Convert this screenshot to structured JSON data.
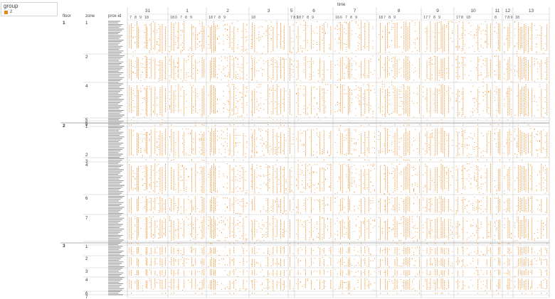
{
  "legend": {
    "title": "group",
    "items": [
      {
        "label": "2",
        "color": "#e8841a"
      }
    ]
  },
  "headers": {
    "floor": "floor",
    "zone": "zone",
    "prox_id": "prox-id",
    "time": "time"
  },
  "chart_data": {
    "type": "scatter",
    "mark_color": "#e8841a",
    "x_axis": {
      "label": "time",
      "days": [
        "31",
        "1",
        "2",
        "3",
        "5",
        "6",
        "7",
        "8",
        "9",
        "10",
        "11",
        "12",
        "13"
      ],
      "hour_ticks": [
        [
          "7",
          "8",
          "9",
          "18"
        ],
        [
          "18",
          "0",
          "7",
          "8",
          "9"
        ],
        [
          "18",
          "7",
          "8",
          "9"
        ],
        [
          "18"
        ],
        [
          "7",
          "8",
          "9"
        ],
        [
          "18",
          "7",
          "8",
          "9"
        ],
        [
          "16",
          "6",
          "7",
          "8",
          "9"
        ],
        [
          "18",
          "7",
          "8",
          "9"
        ],
        [
          "17",
          "7",
          "8",
          "9"
        ],
        [
          "17",
          "8",
          "18"
        ],
        [
          "8"
        ],
        [
          "7",
          "8",
          "9"
        ],
        [
          "18"
        ]
      ]
    },
    "rows": [
      {
        "floor": "1",
        "zones": [
          "1",
          "2",
          "4",
          "5",
          "6"
        ]
      },
      {
        "floor": "2",
        "zones": [
          "8",
          "1",
          "2",
          "3",
          "4",
          "6",
          "7"
        ]
      },
      {
        "floor": "3",
        "zones": [
          "1",
          "2",
          "3",
          "4",
          "6",
          "7"
        ]
      }
    ],
    "grid": true,
    "legend_position": "top-left"
  }
}
